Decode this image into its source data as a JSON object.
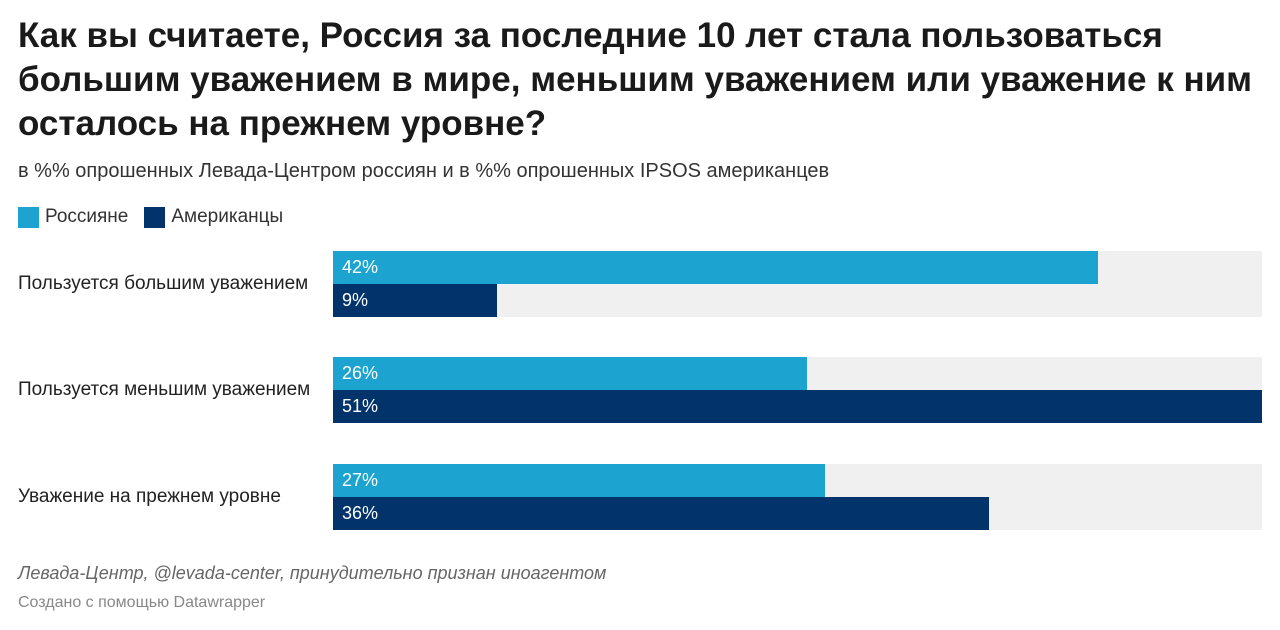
{
  "chart_data": {
    "type": "bar",
    "orientation": "horizontal",
    "title": "Как вы считаете, Россия за последние 10 лет стала пользоваться большим уважением в мире, меньшим уважением или уважение к ним осталось на прежнем уровне?",
    "subtitle": "в %% опрошенных Левада-Центром россиян и в %% опрошенных IPSOS американцев",
    "categories": [
      "Пользуется большим уважением",
      "Пользуется меньшим уважением",
      "Уважение на прежнем уровне"
    ],
    "series": [
      {
        "name": "Россияне",
        "color": "#1ca3cf",
        "values": [
          42,
          26,
          27
        ],
        "labels": [
          "42%",
          "26%",
          "27%"
        ]
      },
      {
        "name": "Американцы",
        "color": "#03336b",
        "values": [
          9,
          51,
          36
        ],
        "labels": [
          "9%",
          "51%",
          "36%"
        ]
      }
    ],
    "xlim": [
      0,
      51
    ],
    "legend_position": "top-left",
    "grid": false,
    "source": "Левада-Центр, @levada-center, принудительно признан иноагентом",
    "credit": "Создано с помощью Datawrapper"
  }
}
